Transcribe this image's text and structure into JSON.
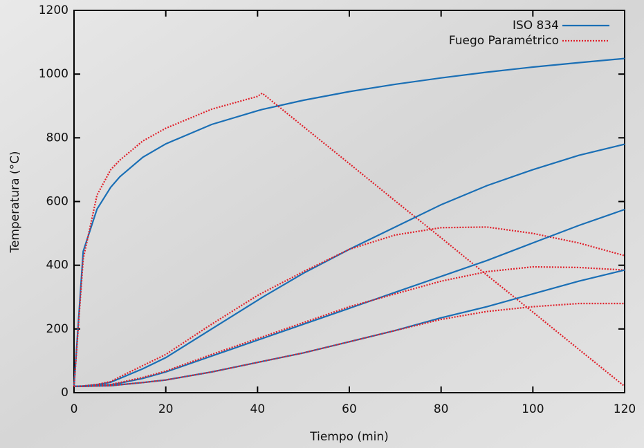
{
  "chart_data": {
    "type": "line",
    "xlabel": "Tiempo (min)",
    "ylabel": "Temperatura (°C)",
    "x": [
      0,
      2,
      5,
      8,
      10,
      15,
      20,
      30,
      40,
      41,
      50,
      60,
      70,
      80,
      90,
      100,
      110,
      120
    ],
    "xlim": [
      0,
      120
    ],
    "xticks": [
      0,
      20,
      40,
      60,
      80,
      100,
      120
    ],
    "ylim": [
      0,
      1200
    ],
    "yticks": [
      0,
      200,
      400,
      600,
      800,
      1000,
      1200
    ],
    "legend": "top-right",
    "series": [
      {
        "name": "ISO 834",
        "color": "#1a6fb5",
        "style": "solid",
        "values": [
          20,
          444,
          576,
          645,
          678,
          739,
          781,
          842,
          885,
          889,
          918,
          945,
          968,
          988,
          1006,
          1022,
          1036,
          1049
        ]
      },
      {
        "name": "Fuego Paramétrico",
        "color": "#e0202a",
        "style": "dotted",
        "values": [
          20,
          420,
          620,
          700,
          730,
          790,
          830,
          890,
          930,
          940,
          835,
          719,
          602,
          486,
          369,
          253,
          136,
          20
        ]
      },
      {
        "color": "#1a6fb5",
        "style": "solid",
        "values": [
          20,
          21,
          25,
          33,
          45,
          75,
          110,
          200,
          290,
          299,
          375,
          450,
          520,
          590,
          650,
          700,
          745,
          780
        ]
      },
      {
        "color": "#e0202a",
        "style": "dotted",
        "values": [
          20,
          21,
          26,
          35,
          50,
          85,
          120,
          215,
          305,
          313,
          380,
          450,
          495,
          518,
          520,
          500,
          470,
          430
        ]
      },
      {
        "color": "#1a6fb5",
        "style": "solid",
        "values": [
          20,
          20,
          22,
          25,
          30,
          45,
          65,
          115,
          165,
          170,
          215,
          265,
          315,
          365,
          415,
          470,
          525,
          575
        ]
      },
      {
        "color": "#e0202a",
        "style": "dotted",
        "values": [
          20,
          20,
          22,
          26,
          32,
          48,
          68,
          120,
          170,
          175,
          220,
          270,
          310,
          350,
          380,
          395,
          393,
          385
        ]
      },
      {
        "color": "#1a6fb5",
        "style": "solid",
        "values": [
          20,
          20,
          21,
          22,
          25,
          32,
          40,
          65,
          95,
          98,
          125,
          160,
          195,
          235,
          270,
          310,
          350,
          385
        ]
      },
      {
        "color": "#e0202a",
        "style": "dotted",
        "values": [
          20,
          20,
          21,
          22,
          25,
          32,
          40,
          65,
          95,
          98,
          125,
          160,
          195,
          230,
          255,
          270,
          280,
          280
        ]
      }
    ]
  }
}
